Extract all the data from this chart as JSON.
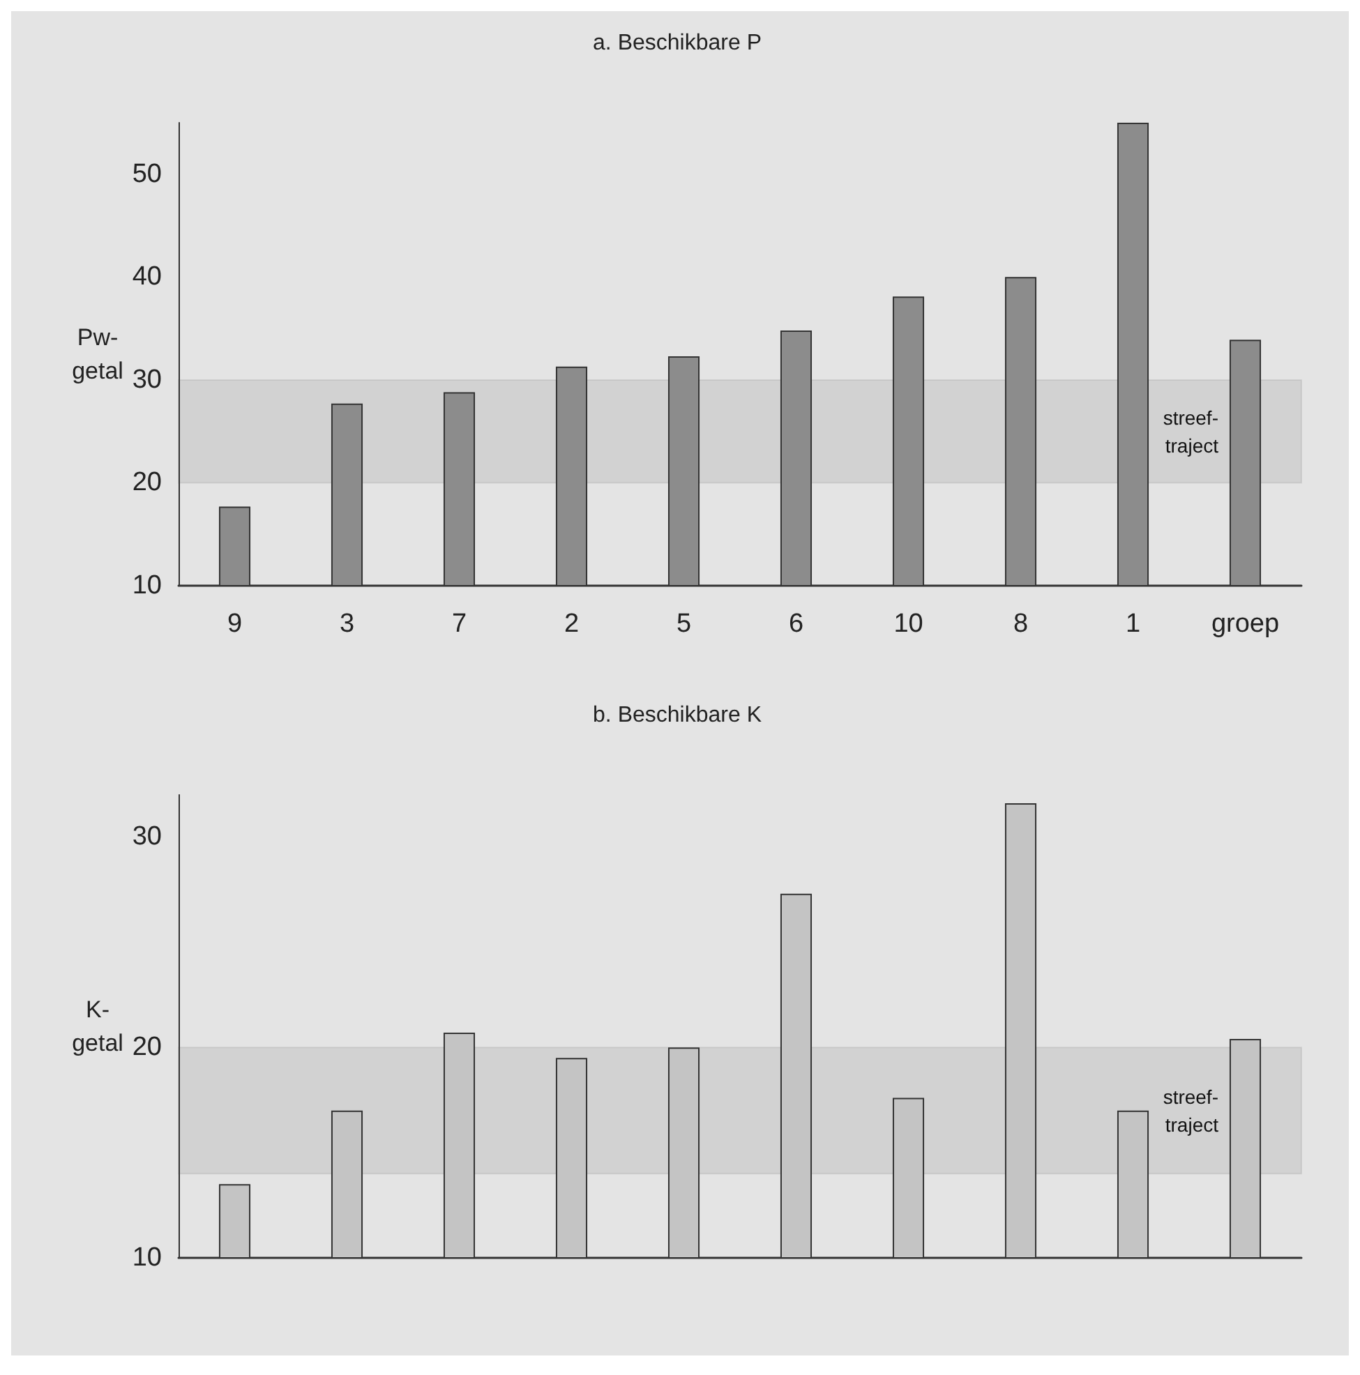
{
  "chart_data": [
    {
      "type": "bar",
      "title": "a. Beschikbare P",
      "ylabel": "Pw-\ngetal",
      "categories": [
        "9",
        "3",
        "7",
        "2",
        "5",
        "6",
        "10",
        "8",
        "1",
        "groep"
      ],
      "values": [
        17.7,
        27.7,
        28.8,
        31.3,
        32.3,
        34.8,
        38.1,
        40.0,
        55.0,
        33.9
      ],
      "color": "#8c8c8c",
      "ylim": [
        10,
        55
      ],
      "yticks": [
        10,
        20,
        30,
        40,
        50
      ],
      "grid": false,
      "bands": [
        {
          "axis": "y",
          "from": 20,
          "to": 30,
          "label": "streef-\ntraject",
          "color": "#555555"
        }
      ]
    },
    {
      "type": "bar",
      "title": "b. Beschikbare K",
      "ylabel": "K-\ngetal",
      "categories": [
        null,
        null,
        null,
        null,
        null,
        null,
        null,
        null,
        null,
        null
      ],
      "values": [
        13.5,
        17.0,
        20.7,
        19.5,
        20.0,
        27.3,
        17.6,
        31.6,
        17.0,
        20.4
      ],
      "color": "#c4c4c4",
      "ylim": [
        10,
        32
      ],
      "yticks": [
        10,
        20,
        30
      ],
      "grid": false,
      "bands": [
        {
          "axis": "y",
          "from": 14,
          "to": 20,
          "label": "streef-\ntraject",
          "color": "#555555"
        }
      ]
    }
  ]
}
